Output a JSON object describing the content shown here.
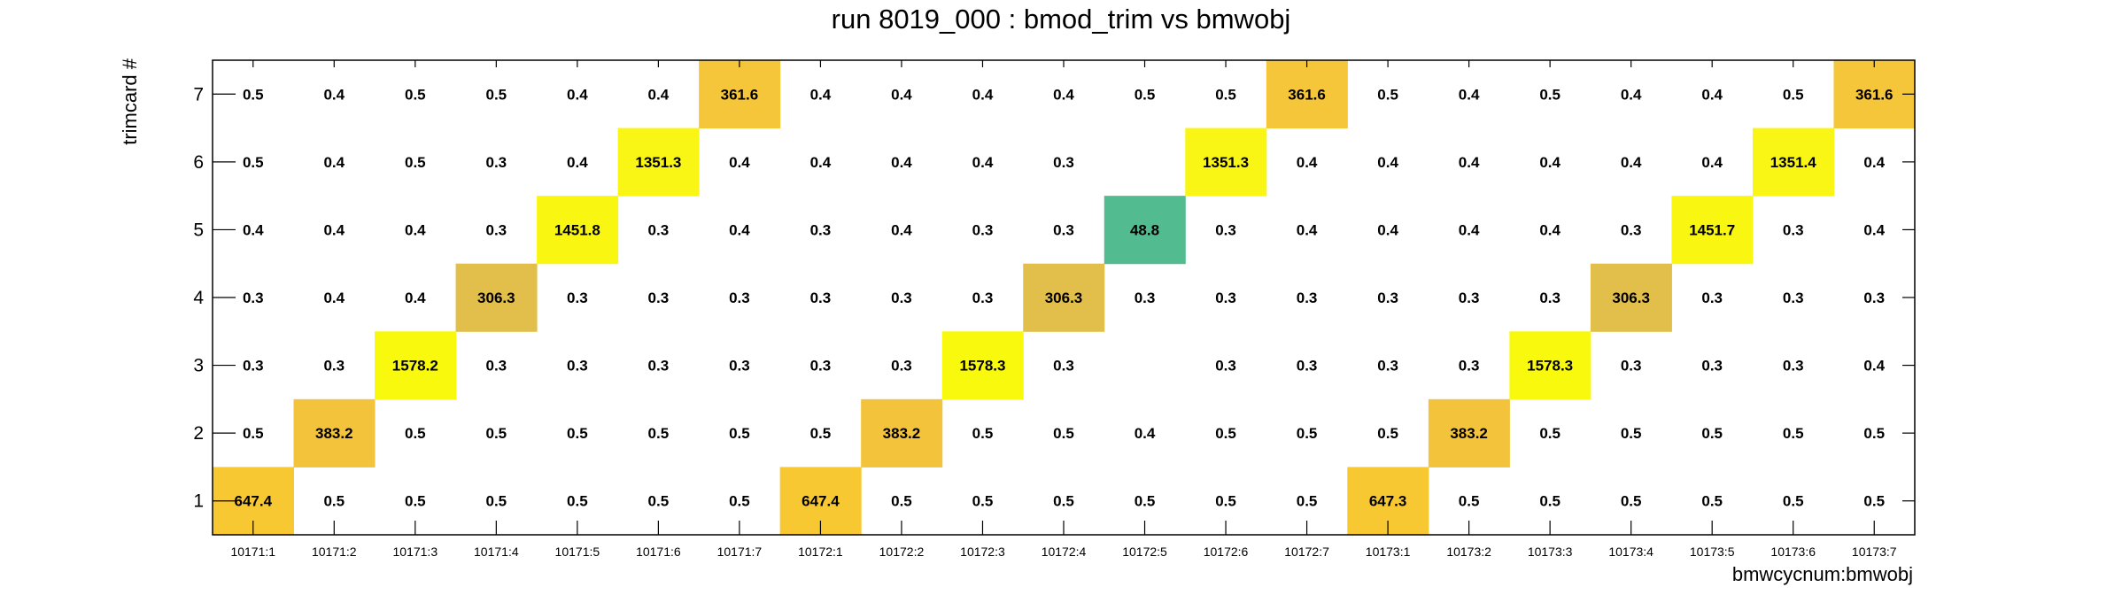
{
  "chart_data": {
    "type": "heatmap",
    "title": "run 8019_000 : bmod_trim vs bmwobj",
    "xlabel": "bmwcycnum:bmwobj",
    "ylabel": "trimcard #",
    "x_categories": [
      "10171:1",
      "10171:2",
      "10171:3",
      "10171:4",
      "10171:5",
      "10171:6",
      "10171:7",
      "10172:1",
      "10172:2",
      "10172:3",
      "10172:4",
      "10172:5",
      "10172:6",
      "10172:7",
      "10173:1",
      "10173:2",
      "10173:3",
      "10173:4",
      "10173:5",
      "10173:6",
      "10173:7"
    ],
    "y_categories": [
      "1",
      "2",
      "3",
      "4",
      "5",
      "6",
      "7"
    ],
    "values": [
      [
        647.4,
        0.5,
        0.5,
        0.5,
        0.5,
        0.5,
        0.5,
        647.4,
        0.5,
        0.5,
        0.5,
        0.5,
        0.5,
        0.5,
        647.3,
        0.5,
        0.5,
        0.5,
        0.5,
        0.5,
        0.5
      ],
      [
        0.5,
        383.2,
        0.5,
        0.5,
        0.5,
        0.5,
        0.5,
        0.5,
        383.2,
        0.5,
        0.5,
        0.4,
        0.5,
        0.5,
        0.5,
        383.2,
        0.5,
        0.5,
        0.5,
        0.5,
        0.5
      ],
      [
        0.3,
        0.3,
        1578.2,
        0.3,
        0.3,
        0.3,
        0.3,
        0.3,
        0.3,
        1578.3,
        0.3,
        null,
        0.3,
        0.3,
        0.3,
        0.3,
        1578.3,
        0.3,
        0.3,
        0.3,
        0.4
      ],
      [
        0.3,
        0.4,
        0.4,
        306.3,
        0.3,
        0.3,
        0.3,
        0.3,
        0.3,
        0.3,
        306.3,
        0.3,
        0.3,
        0.3,
        0.3,
        0.3,
        0.3,
        306.3,
        0.3,
        0.3,
        0.3
      ],
      [
        0.4,
        0.4,
        0.4,
        0.3,
        1451.8,
        0.3,
        0.4,
        0.3,
        0.4,
        0.3,
        0.3,
        48.8,
        0.3,
        0.4,
        0.4,
        0.4,
        0.4,
        0.3,
        1451.7,
        0.3,
        0.4
      ],
      [
        0.5,
        0.4,
        0.5,
        0.3,
        0.4,
        1351.3,
        0.4,
        0.4,
        0.4,
        0.4,
        0.3,
        null,
        1351.3,
        0.4,
        0.4,
        0.4,
        0.4,
        0.4,
        0.4,
        1351.4,
        0.4
      ],
      [
        0.5,
        0.4,
        0.5,
        0.5,
        0.4,
        0.4,
        361.6,
        0.4,
        0.4,
        0.4,
        0.4,
        0.5,
        0.5,
        361.6,
        0.5,
        0.4,
        0.5,
        0.4,
        0.4,
        0.5,
        361.6
      ]
    ],
    "colors": {
      "647.4": "#f8c833",
      "647.3": "#f8c833",
      "383.2": "#f3c33b",
      "1578.2": "#f9f90e",
      "1578.3": "#f9f90e",
      "306.3": "#e2bf4a",
      "1451.8": "#f9f712",
      "1451.7": "#f9f712",
      "1351.3": "#f9f515",
      "1351.4": "#f9f515",
      "361.6": "#f5c53a",
      "48.8": "#53bb90"
    },
    "grid": false
  }
}
